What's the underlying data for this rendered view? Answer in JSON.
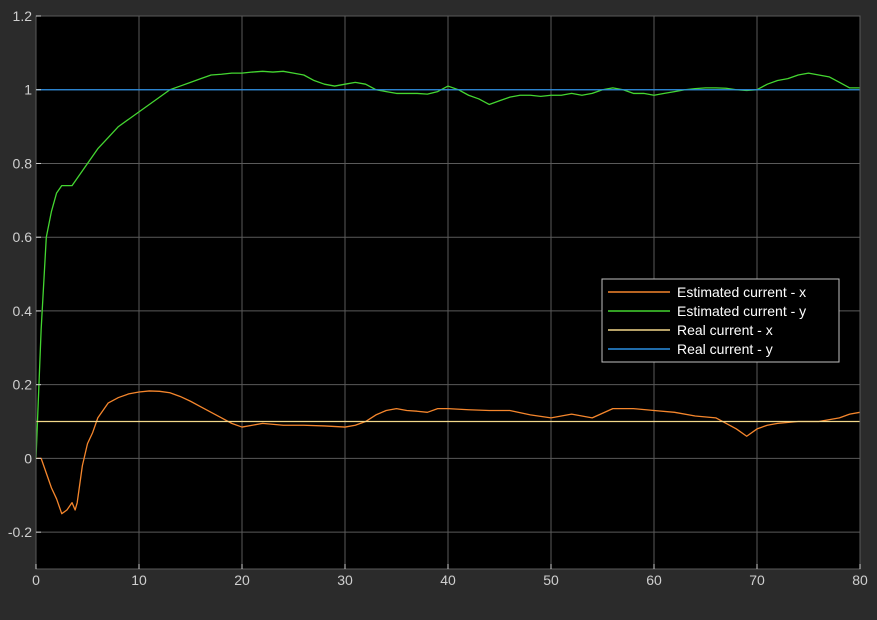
{
  "chart_data": {
    "type": "line",
    "title": "",
    "xlabel": "",
    "ylabel": "",
    "xlim": [
      0,
      80
    ],
    "ylim": [
      -0.3,
      1.2
    ],
    "xticks": [
      0,
      10,
      20,
      30,
      40,
      50,
      60,
      70,
      80
    ],
    "xtick_labels": [
      "0",
      "10",
      "20",
      "30",
      "40",
      "50",
      "60",
      "70",
      "80"
    ],
    "yticks": [
      -0.2,
      0,
      0.2,
      0.4,
      0.6,
      0.8,
      1,
      1.2
    ],
    "ytick_labels": [
      "-0.2",
      "0",
      "0.2",
      "0.4",
      "0.6",
      "0.8",
      "1",
      "1.2"
    ],
    "grid": true,
    "legend_position": "right",
    "series": [
      {
        "name": "Estimated current - x",
        "color": "#f5862c",
        "x": [
          0,
          0.5,
          1,
          1.5,
          2,
          2.5,
          3,
          3.5,
          3.8,
          4,
          4.5,
          5,
          5.5,
          6,
          7,
          8,
          9,
          10,
          11,
          12,
          13,
          14,
          15,
          16,
          17,
          18,
          19,
          20,
          21,
          22,
          24,
          26,
          28,
          30,
          31,
          32,
          33,
          34,
          35,
          36,
          37,
          38,
          39,
          40,
          42,
          44,
          46,
          48,
          50,
          52,
          54,
          56,
          58,
          60,
          62,
          64,
          66,
          68,
          69,
          70,
          71,
          72,
          74,
          76,
          78,
          79,
          80
        ],
        "y": [
          0,
          0,
          -0.04,
          -0.08,
          -0.11,
          -0.15,
          -0.14,
          -0.12,
          -0.14,
          -0.12,
          -0.02,
          0.04,
          0.07,
          0.11,
          0.15,
          0.165,
          0.175,
          0.18,
          0.183,
          0.182,
          0.178,
          0.168,
          0.155,
          0.14,
          0.125,
          0.11,
          0.095,
          0.085,
          0.09,
          0.095,
          0.09,
          0.09,
          0.088,
          0.085,
          0.09,
          0.1,
          0.118,
          0.13,
          0.135,
          0.13,
          0.128,
          0.125,
          0.135,
          0.135,
          0.132,
          0.13,
          0.13,
          0.118,
          0.11,
          0.12,
          0.11,
          0.135,
          0.135,
          0.13,
          0.125,
          0.115,
          0.11,
          0.08,
          0.06,
          0.08,
          0.09,
          0.095,
          0.1,
          0.1,
          0.11,
          0.12,
          0.125
        ]
      },
      {
        "name": "Estimated current - y",
        "color": "#44d631",
        "x": [
          0,
          0.5,
          1,
          1.5,
          2,
          2.5,
          3,
          3.5,
          4,
          4.5,
          5,
          6,
          7,
          8,
          9,
          10,
          11,
          12,
          13,
          14,
          15,
          16,
          17,
          18,
          19,
          20,
          21,
          22,
          23,
          24,
          25,
          26,
          27,
          28,
          29,
          30,
          31,
          32,
          33,
          34,
          35,
          36,
          37,
          38,
          39,
          40,
          41,
          42,
          43,
          44,
          45,
          46,
          47,
          48,
          49,
          50,
          51,
          52,
          53,
          54,
          55,
          56,
          57,
          58,
          59,
          60,
          61,
          62,
          63,
          64,
          65,
          66,
          67,
          68,
          69,
          70,
          71,
          72,
          73,
          74,
          75,
          76,
          77,
          78,
          79,
          80
        ],
        "y": [
          0,
          0.35,
          0.6,
          0.67,
          0.72,
          0.74,
          0.74,
          0.74,
          0.76,
          0.78,
          0.8,
          0.84,
          0.87,
          0.9,
          0.92,
          0.94,
          0.96,
          0.98,
          1.0,
          1.01,
          1.02,
          1.03,
          1.04,
          1.042,
          1.045,
          1.045,
          1.048,
          1.05,
          1.048,
          1.05,
          1.045,
          1.04,
          1.025,
          1.015,
          1.01,
          1.015,
          1.02,
          1.015,
          1.0,
          0.995,
          0.99,
          0.99,
          0.99,
          0.988,
          0.995,
          1.01,
          1.0,
          0.985,
          0.975,
          0.96,
          0.97,
          0.98,
          0.985,
          0.985,
          0.982,
          0.985,
          0.985,
          0.99,
          0.985,
          0.99,
          1.0,
          1.005,
          1.0,
          0.99,
          0.99,
          0.985,
          0.99,
          0.995,
          1.0,
          1.003,
          1.005,
          1.005,
          1.004,
          1.0,
          0.998,
          1.0,
          1.015,
          1.025,
          1.03,
          1.04,
          1.045,
          1.04,
          1.035,
          1.02,
          1.005,
          1.005
        ]
      },
      {
        "name": "Real current - x",
        "color": "#f2d88a",
        "x": [
          0,
          80
        ],
        "y": [
          0.1,
          0.1
        ]
      },
      {
        "name": "Real current - y",
        "color": "#2b8fe3",
        "x": [
          0,
          80
        ],
        "y": [
          1,
          1
        ]
      }
    ]
  },
  "colors": {
    "figure_background": "#2b2b2b",
    "axes_background": "#000000",
    "grid": "#5a5a5a",
    "tick_text": "#cfcfcf",
    "legend_text": "#ffffff",
    "legend_border": "#bfbfbf"
  }
}
